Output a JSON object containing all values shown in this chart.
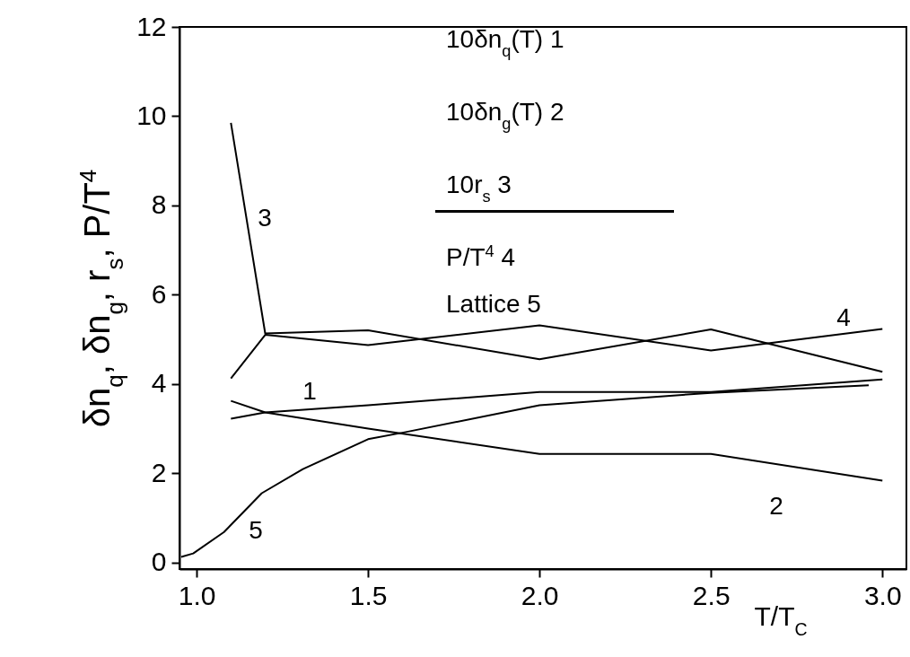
{
  "chart_data": {
    "type": "line",
    "xlabel": "T/T$_{C}$",
    "ylabel": "δn$_{q}$, δn$_{g}$, r$_{s}$, P/T$^{4}$",
    "xlim": [
      0.95,
      3.07
    ],
    "ylim": [
      -0.15,
      12
    ],
    "xticks": [
      {
        "value": 1,
        "label": "1.0"
      },
      {
        "value": 1.5,
        "label": "1.5"
      },
      {
        "value": 2,
        "label": "2.0"
      },
      {
        "value": 2.5,
        "label": "2.5"
      },
      {
        "value": 3,
        "label": "3.0"
      }
    ],
    "yticks": [
      0,
      2,
      4,
      6,
      8,
      10,
      12
    ],
    "grid": false,
    "line_style": "solid",
    "marker": "none",
    "series": [
      {
        "color": "#000000",
        "x": [
          1.1,
          1.2,
          1.5,
          2.0,
          2.5,
          3.0
        ],
        "values": [
          3.22,
          3.36,
          3.52,
          3.82,
          3.82,
          4.1
        ]
      },
      {
        "color": "#000000",
        "x": [
          1.1,
          1.2,
          1.5,
          2.0,
          2.5,
          3.0
        ],
        "values": [
          3.62,
          3.36,
          3.0,
          2.43,
          2.43,
          1.83
        ]
      },
      {
        "color": "#000000",
        "x": [
          1.1,
          1.2,
          1.5,
          2.0,
          2.5,
          3.0
        ],
        "values": [
          9.85,
          5.13,
          5.2,
          4.55,
          5.22,
          4.27
        ]
      },
      {
        "color": "#000000",
        "x": [
          1.1,
          1.2,
          1.5,
          2.0,
          2.5,
          3.0
        ],
        "values": [
          4.12,
          5.1,
          4.87,
          5.31,
          4.75,
          5.23
        ]
      },
      {
        "color": "#000000",
        "x": [
          0.955,
          0.99,
          1.08,
          1.19,
          1.31,
          1.5,
          1.61,
          2.0,
          2.5,
          2.96
        ],
        "values": [
          0.12,
          0.2,
          0.68,
          1.55,
          2.09,
          2.76,
          2.92,
          3.52,
          3.8,
          3.97
        ]
      }
    ],
    "annotations": [
      "10δn$_{q}$(T) 1",
      "10δn$_{g}$(T) 2",
      "10r$_{s}$      3",
      "P/T$^{4}$          4",
      "Lattice      5",
      "1",
      "2",
      "3",
      "4",
      "5"
    ]
  }
}
